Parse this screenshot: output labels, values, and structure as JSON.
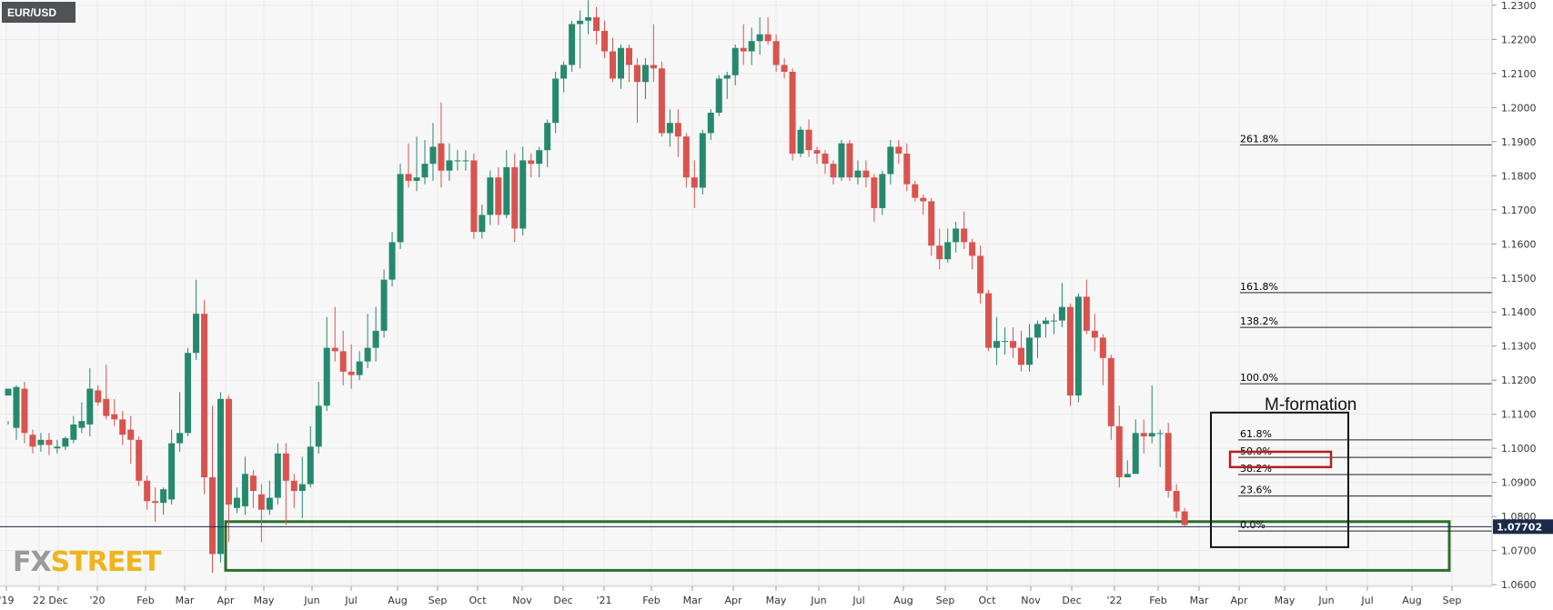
{
  "symbol": "EUR/USD",
  "logo": {
    "part1": "FX",
    "part2": "STREET"
  },
  "current_price": "1.07702",
  "annotation": "M-formation",
  "colors": {
    "bull": "#26896e",
    "bear": "#d9534f",
    "grid": "#e9e9e9",
    "price_line": "#1d2b4a",
    "support_box": "#2c6e2c",
    "m_box": "#111111",
    "fib_box": "#b22222",
    "fib_line": "#222222",
    "symbol_bg": "#505256",
    "logo_fx": "#9a9a9a",
    "logo_street": "#f0b41c"
  },
  "chart_data": {
    "type": "candlestick",
    "title": "EUR/USD",
    "ylim": [
      1.0595,
      1.2305
    ],
    "y_ticks": [
      "1.2300",
      "1.2200",
      "1.2100",
      "1.2000",
      "1.1900",
      "1.1800",
      "1.1700",
      "1.1600",
      "1.1500",
      "1.1400",
      "1.1300",
      "1.1200",
      "1.1100",
      "1.1000",
      "1.0900",
      "1.0800",
      "1.0700",
      "1.0600"
    ],
    "x_tick_labels": [
      "'19",
      "22",
      "Dec",
      "'20",
      "Feb",
      "Mar",
      "Apr",
      "May",
      "Jun",
      "Jul",
      "Aug",
      "Sep",
      "Oct",
      "Nov",
      "Dec",
      "'21",
      "Feb",
      "Mar",
      "Apr",
      "May",
      "Jun",
      "Jul",
      "Aug",
      "Sep",
      "Oct",
      "Nov",
      "Dec",
      "'22",
      "Feb",
      "Mar",
      "Apr",
      "May",
      "Jun",
      "Jul",
      "Aug",
      "Sep"
    ],
    "grid": true,
    "last_price": 1.07702,
    "candles": [
      [
        1.1155,
        1.1175,
        1.108,
        1.107
      ],
      [
        1.106,
        1.118,
        1.1185,
        1.1025
      ],
      [
        1.1175,
        1.1045,
        1.1195,
        1.1015
      ],
      [
        1.104,
        1.1005,
        1.1055,
        1.0985
      ],
      [
        1.101,
        1.1025,
        1.1045,
        1.099
      ],
      [
        1.1025,
        1.101,
        1.1045,
        1.098
      ],
      [
        1.1,
        1.1005,
        1.1025,
        1.0985
      ],
      [
        1.1005,
        1.103,
        1.1035,
        1.0995
      ],
      [
        1.1025,
        1.107,
        1.1095,
        1.1015
      ],
      [
        1.106,
        1.108,
        1.1135,
        1.1045
      ],
      [
        1.107,
        1.1175,
        1.1235,
        1.1035
      ],
      [
        1.117,
        1.1135,
        1.1185,
        1.1125
      ],
      [
        1.1145,
        1.1095,
        1.1245,
        1.1085
      ],
      [
        1.11,
        1.1085,
        1.1145,
        1.1065
      ],
      [
        1.1085,
        1.104,
        1.111,
        1.101
      ],
      [
        1.1055,
        1.1025,
        1.1095,
        1.0955
      ],
      [
        1.1025,
        1.0905,
        1.1035,
        1.089
      ],
      [
        1.0905,
        1.0845,
        1.092,
        1.082
      ],
      [
        1.0845,
        1.084,
        1.0885,
        1.0785
      ],
      [
        1.084,
        1.088,
        1.0885,
        1.0805
      ],
      [
        1.085,
        1.1015,
        1.1055,
        1.0835
      ],
      [
        1.1015,
        1.1045,
        1.1165,
        1.099
      ],
      [
        1.1045,
        1.128,
        1.1295,
        1.1035
      ],
      [
        1.128,
        1.1395,
        1.1495,
        1.126
      ],
      [
        1.1395,
        1.0915,
        1.1435,
        1.0865
      ],
      [
        1.0915,
        1.069,
        1.1125,
        1.0635
      ],
      [
        1.069,
        1.1145,
        1.1165,
        1.0665
      ],
      [
        1.1145,
        1.0835,
        1.1155,
        1.0725
      ],
      [
        1.0825,
        1.0855,
        1.0885,
        1.081
      ],
      [
        1.083,
        1.0925,
        1.0975,
        1.0805
      ],
      [
        1.092,
        1.0875,
        1.0935,
        1.0825
      ],
      [
        1.0865,
        1.082,
        1.0895,
        1.0725
      ],
      [
        1.082,
        1.0855,
        1.0905,
        1.0805
      ],
      [
        1.0855,
        1.0985,
        1.1015,
        1.0835
      ],
      [
        1.0985,
        1.0905,
        1.1015,
        1.0775
      ],
      [
        1.0905,
        1.0875,
        1.0925,
        1.0825
      ],
      [
        1.0875,
        1.0895,
        1.0975,
        1.0795
      ],
      [
        1.0895,
        1.1005,
        1.1065,
        1.0885
      ],
      [
        1.1005,
        1.1125,
        1.1195,
        1.0985
      ],
      [
        1.1125,
        1.1295,
        1.1385,
        1.111
      ],
      [
        1.1295,
        1.1285,
        1.1415,
        1.1255
      ],
      [
        1.1285,
        1.1225,
        1.1345,
        1.1185
      ],
      [
        1.1225,
        1.1215,
        1.1305,
        1.1175
      ],
      [
        1.1215,
        1.1255,
        1.1285,
        1.12
      ],
      [
        1.1255,
        1.1295,
        1.1395,
        1.1235
      ],
      [
        1.1295,
        1.1345,
        1.1415,
        1.1255
      ],
      [
        1.1345,
        1.1495,
        1.1525,
        1.1325
      ],
      [
        1.1495,
        1.1605,
        1.1635,
        1.1475
      ],
      [
        1.1605,
        1.1805,
        1.1835,
        1.1585
      ],
      [
        1.1805,
        1.1785,
        1.1895,
        1.1765
      ],
      [
        1.1785,
        1.1795,
        1.1915,
        1.1755
      ],
      [
        1.1795,
        1.1835,
        1.1905,
        1.1775
      ],
      [
        1.1835,
        1.1885,
        1.1955,
        1.1785
      ],
      [
        1.1895,
        1.1815,
        1.2015,
        1.1765
      ],
      [
        1.1815,
        1.1845,
        1.1895,
        1.1785
      ],
      [
        1.1845,
        1.1845,
        1.1875,
        1.1815
      ],
      [
        1.1845,
        1.1845,
        1.1875,
        1.1815
      ],
      [
        1.1845,
        1.1635,
        1.1865,
        1.1615
      ],
      [
        1.1635,
        1.1685,
        1.1715,
        1.1615
      ],
      [
        1.1685,
        1.1795,
        1.1815,
        1.1655
      ],
      [
        1.1795,
        1.1685,
        1.1825,
        1.1655
      ],
      [
        1.1685,
        1.1825,
        1.1875,
        1.1675
      ],
      [
        1.1825,
        1.1645,
        1.1865,
        1.1605
      ],
      [
        1.1645,
        1.1845,
        1.1885,
        1.1625
      ],
      [
        1.1845,
        1.1835,
        1.1865,
        1.1795
      ],
      [
        1.1835,
        1.1875,
        1.1885,
        1.1795
      ],
      [
        1.1875,
        1.1955,
        1.1965,
        1.1825
      ],
      [
        1.1955,
        1.2085,
        1.2105,
        1.1925
      ],
      [
        1.2085,
        1.2125,
        1.2135,
        1.2045
      ],
      [
        1.2125,
        1.2245,
        1.2255,
        1.2105
      ],
      [
        1.2245,
        1.2255,
        1.2285,
        1.2115
      ],
      [
        1.2255,
        1.2265,
        1.2315,
        1.2215
      ],
      [
        1.2265,
        1.2225,
        1.2295,
        1.2185
      ],
      [
        1.2225,
        1.2165,
        1.2255,
        1.2145
      ],
      [
        1.2165,
        1.2085,
        1.2205,
        1.2075
      ],
      [
        1.2085,
        1.2175,
        1.2185,
        1.2055
      ],
      [
        1.2175,
        1.2125,
        1.2185,
        1.2075
      ],
      [
        1.2125,
        1.2075,
        1.2145,
        1.1955
      ],
      [
        1.2075,
        1.2125,
        1.2145,
        1.2025
      ],
      [
        1.2125,
        1.2115,
        1.2245,
        1.2075
      ],
      [
        1.2115,
        1.1925,
        1.2135,
        1.1915
      ],
      [
        1.1925,
        1.1955,
        1.1995,
        1.1885
      ],
      [
        1.1955,
        1.1915,
        1.1995,
        1.1855
      ],
      [
        1.1915,
        1.1795,
        1.1925,
        1.1765
      ],
      [
        1.1795,
        1.1765,
        1.1845,
        1.1705
      ],
      [
        1.1765,
        1.1925,
        1.1935,
        1.1745
      ],
      [
        1.1925,
        1.1985,
        1.1995,
        1.1905
      ],
      [
        1.1985,
        1.2085,
        1.2095,
        1.1975
      ],
      [
        1.2085,
        1.2095,
        1.2105,
        1.2025
      ],
      [
        1.2095,
        1.2175,
        1.2185,
        1.2065
      ],
      [
        1.2175,
        1.2165,
        1.2245,
        1.2125
      ],
      [
        1.2165,
        1.2195,
        1.2235,
        1.2125
      ],
      [
        1.2195,
        1.2215,
        1.2265,
        1.2155
      ],
      [
        1.2215,
        1.2195,
        1.2265,
        1.2185
      ],
      [
        1.2195,
        1.2125,
        1.2215,
        1.2105
      ],
      [
        1.2125,
        1.2105,
        1.2145,
        1.2085
      ],
      [
        1.2105,
        1.1865,
        1.2115,
        1.1845
      ],
      [
        1.1865,
        1.1935,
        1.1945,
        1.1855
      ],
      [
        1.1935,
        1.1875,
        1.1965,
        1.1855
      ],
      [
        1.1875,
        1.1865,
        1.1885,
        1.1835
      ],
      [
        1.1865,
        1.1835,
        1.1875,
        1.1805
      ],
      [
        1.1835,
        1.1795,
        1.1845,
        1.1775
      ],
      [
        1.1795,
        1.1895,
        1.1905,
        1.1785
      ],
      [
        1.1895,
        1.1795,
        1.1905,
        1.1785
      ],
      [
        1.1795,
        1.1815,
        1.1845,
        1.1775
      ],
      [
        1.1815,
        1.1795,
        1.1845,
        1.1765
      ],
      [
        1.1795,
        1.1705,
        1.1805,
        1.1665
      ],
      [
        1.1705,
        1.1805,
        1.1815,
        1.1685
      ],
      [
        1.1805,
        1.1885,
        1.1905,
        1.1775
      ],
      [
        1.1885,
        1.1865,
        1.1905,
        1.1835
      ],
      [
        1.1865,
        1.1775,
        1.1895,
        1.1755
      ],
      [
        1.1775,
        1.1735,
        1.1785,
        1.1725
      ],
      [
        1.1735,
        1.1725,
        1.1745,
        1.1685
      ],
      [
        1.1725,
        1.1595,
        1.1735,
        1.1565
      ],
      [
        1.1595,
        1.1555,
        1.1645,
        1.1525
      ],
      [
        1.1555,
        1.1605,
        1.1645,
        1.1545
      ],
      [
        1.1605,
        1.1645,
        1.1665,
        1.1575
      ],
      [
        1.1645,
        1.1605,
        1.1695,
        1.1585
      ],
      [
        1.1605,
        1.1565,
        1.1615,
        1.1525
      ],
      [
        1.1565,
        1.1455,
        1.1595,
        1.1425
      ],
      [
        1.1455,
        1.1295,
        1.1465,
        1.1285
      ],
      [
        1.1295,
        1.1315,
        1.1385,
        1.1245
      ],
      [
        1.1315,
        1.1315,
        1.1355,
        1.1275
      ],
      [
        1.1315,
        1.1295,
        1.1355,
        1.1265
      ],
      [
        1.1295,
        1.1245,
        1.1345,
        1.1225
      ],
      [
        1.1245,
        1.1325,
        1.1365,
        1.1225
      ],
      [
        1.1325,
        1.1365,
        1.1375,
        1.1265
      ],
      [
        1.1365,
        1.1375,
        1.1385,
        1.1325
      ],
      [
        1.1375,
        1.1375,
        1.1395,
        1.1335
      ],
      [
        1.1375,
        1.1415,
        1.1485,
        1.1355
      ],
      [
        1.1415,
        1.1155,
        1.1425,
        1.1125
      ],
      [
        1.1155,
        1.1445,
        1.1455,
        1.1135
      ],
      [
        1.1445,
        1.1345,
        1.1495,
        1.1335
      ],
      [
        1.1345,
        1.1325,
        1.1395,
        1.1285
      ],
      [
        1.1325,
        1.1265,
        1.1335,
        1.1185
      ],
      [
        1.1265,
        1.1065,
        1.1275,
        1.1025
      ],
      [
        1.1065,
        1.0915,
        1.1125,
        1.0885
      ],
      [
        1.0915,
        1.0925,
        1.0965,
        1.0915
      ],
      [
        1.0925,
        1.1045,
        1.1085,
        1.0925
      ],
      [
        1.1045,
        1.1035,
        1.1085,
        1.0985
      ],
      [
        1.1035,
        1.1045,
        1.1185,
        1.1015
      ],
      [
        1.1045,
        1.1045,
        1.1055,
        1.0945
      ],
      [
        1.1045,
        1.0875,
        1.1075,
        1.0855
      ],
      [
        1.0875,
        1.0815,
        1.0895,
        1.0795
      ],
      [
        1.0815,
        1.0775,
        1.0825,
        1.0772
      ]
    ]
  },
  "fib_levels": [
    {
      "label": "261.8%",
      "price": 1.18905
    },
    {
      "label": "161.8%",
      "price": 1.1457
    },
    {
      "label": "138.2%",
      "price": 1.1355
    },
    {
      "label": "100.0%",
      "price": 1.11895
    },
    {
      "label": "61.8%",
      "price": 1.1025
    },
    {
      "label": "50.0%",
      "price": 1.09735
    },
    {
      "label": "38.2%",
      "price": 1.0923
    },
    {
      "label": "23.6%",
      "price": 1.086
    },
    {
      "label": "0.0%",
      "price": 1.07575
    }
  ],
  "zones": {
    "support": {
      "price_top": 1.0785,
      "price_bottom": 1.0642
    },
    "m_formation": {
      "price_top": 1.1105,
      "price_bottom": 1.071
    },
    "fib_zone": {
      "price_top": 1.099,
      "price_bottom": 1.0945
    }
  }
}
